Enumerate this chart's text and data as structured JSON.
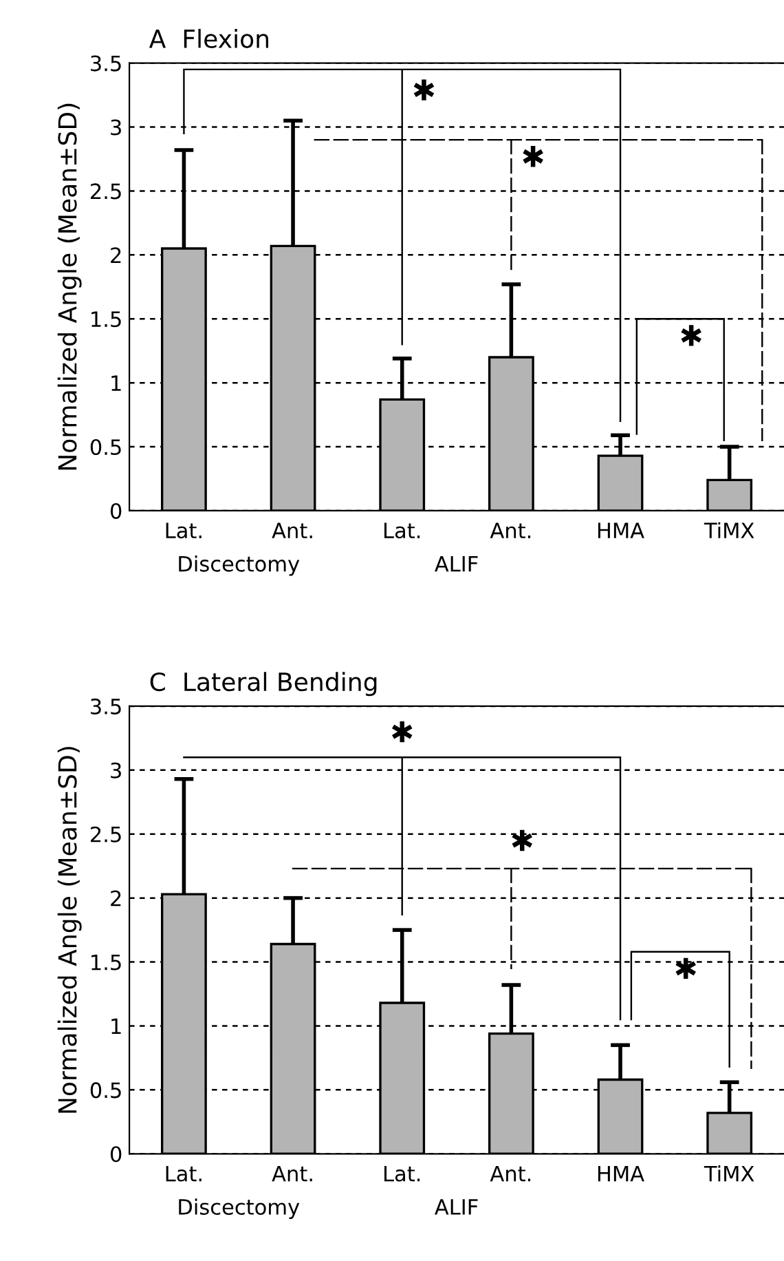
{
  "chart_data": [
    {
      "type": "bar",
      "title": "A  Flexion",
      "ylabel": "Normalized Angle (Mean±SD)",
      "categories": [
        "Lat.",
        "Ant.",
        "Lat.",
        "Ant.",
        "HMA",
        "TiMX"
      ],
      "values": [
        2.05,
        2.07,
        0.87,
        1.2,
        0.43,
        0.24
      ],
      "errors": [
        [
          2.05,
          2.82
        ],
        [
          2.07,
          3.05
        ],
        [
          0.87,
          1.19
        ],
        [
          1.2,
          1.77
        ],
        [
          0.43,
          0.59
        ],
        [
          0.24,
          0.5
        ]
      ],
      "color": "#b4b4b4",
      "ylim": [
        0,
        3.5
      ],
      "yticks": [
        0,
        0.5,
        1,
        1.5,
        2,
        2.5,
        3,
        3.5
      ],
      "grid": "y",
      "annotations": [
        "Discectomy",
        "ALIF",
        "✱",
        "✱",
        "✱"
      ]
    },
    {
      "type": "bar",
      "title": "C  Lateral Bending",
      "ylabel": "Normalized Angle (Mean±SD)",
      "categories": [
        "Lat.",
        "Ant.",
        "Lat.",
        "Ant.",
        "HMA",
        "TiMX"
      ],
      "values": [
        2.03,
        1.64,
        1.18,
        0.94,
        0.58,
        0.32
      ],
      "errors": [
        [
          2.03,
          2.93
        ],
        [
          1.64,
          2.0
        ],
        [
          1.18,
          1.75
        ],
        [
          0.94,
          1.32
        ],
        [
          0.58,
          0.85
        ],
        [
          0.32,
          0.56
        ]
      ],
      "color": "#b4b4b4",
      "ylim": [
        0,
        3.5
      ],
      "yticks": [
        0,
        0.5,
        1,
        1.5,
        2,
        2.5,
        3,
        3.5
      ],
      "grid": "y",
      "annotations": [
        "Discectomy",
        "ALIF",
        "✱",
        "✱",
        "✱"
      ]
    }
  ]
}
